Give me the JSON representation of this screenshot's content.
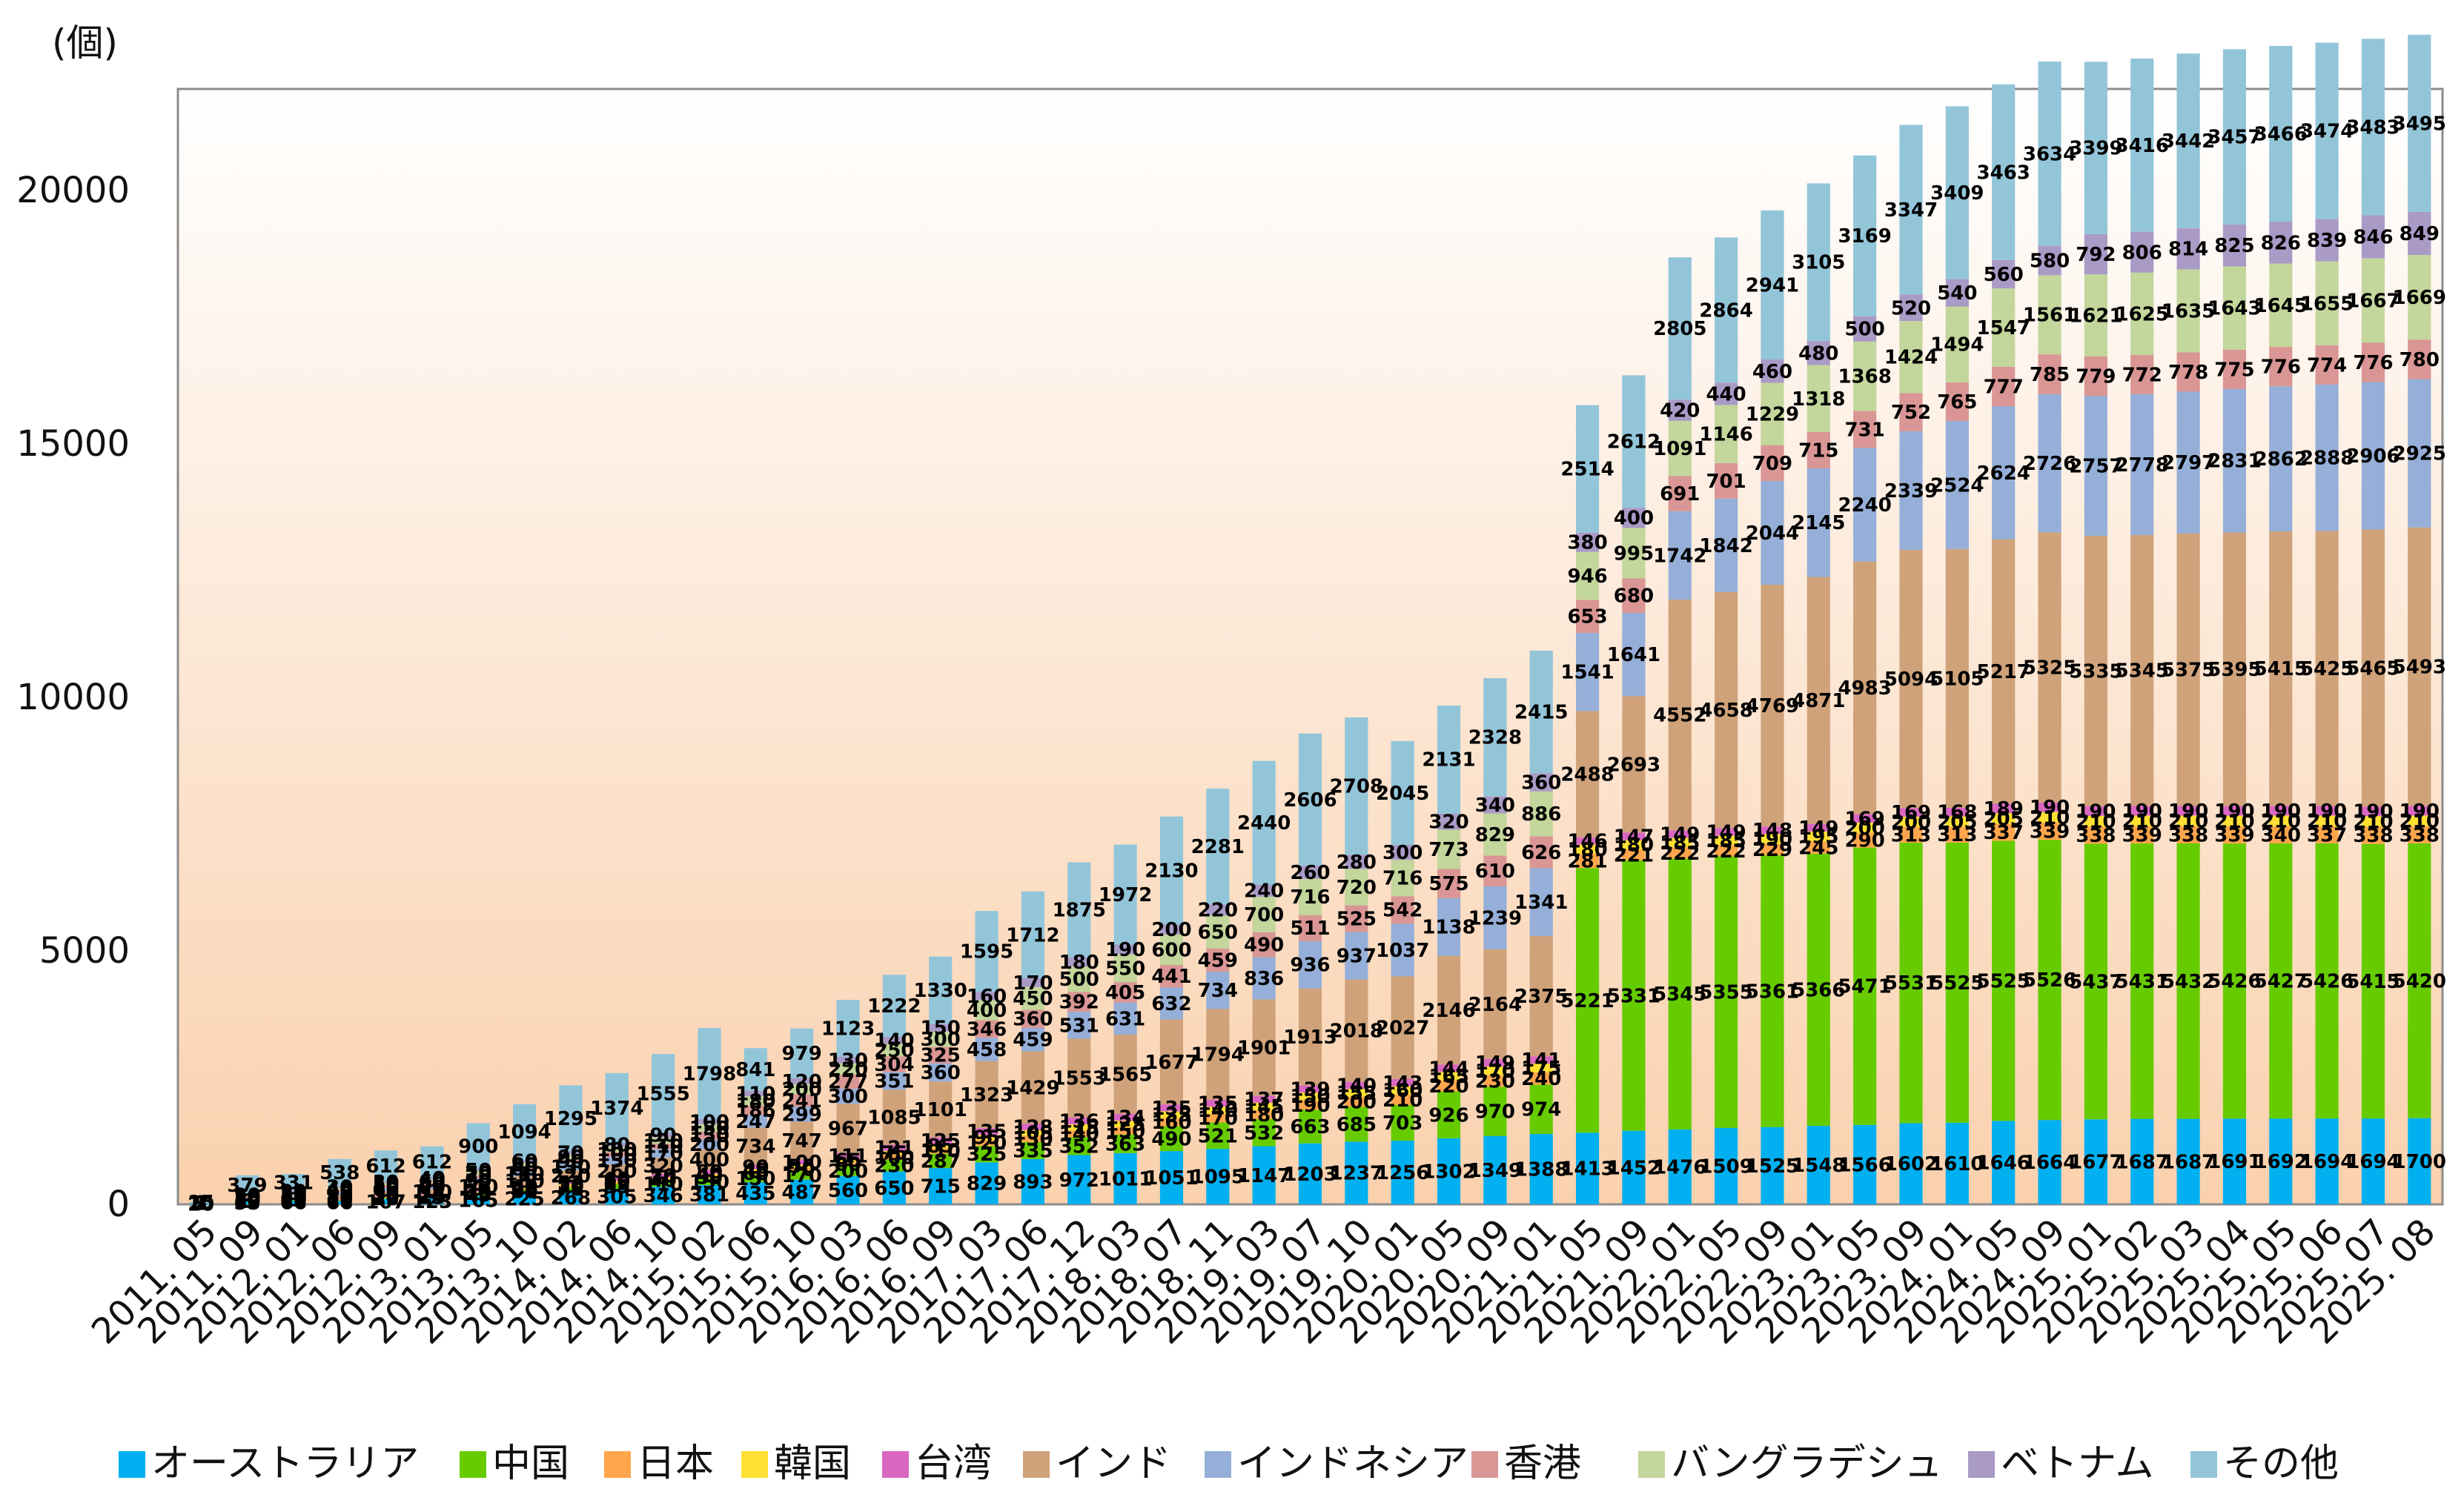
{
  "chart_data": {
    "type": "bar",
    "stacked": true,
    "unit_label": "(個)",
    "title": "",
    "xlabel": "",
    "ylabel": "",
    "ylim": [
      0,
      22000
    ],
    "yticks": [
      0,
      5000,
      10000,
      15000,
      20000
    ],
    "grid": false,
    "legend_position": "bottom",
    "categories": [
      "2011. 05",
      "2011. 09",
      "2012. 01",
      "2012. 06",
      "2012. 09",
      "2013. 01",
      "2013. 05",
      "2013. 10",
      "2014. 02",
      "2014. 06",
      "2014. 10",
      "2015. 02",
      "2015. 06",
      "2015. 10",
      "2016. 03",
      "2016. 06",
      "2016. 09",
      "2017. 03",
      "2017. 06",
      "2017. 12",
      "2018. 03",
      "2018. 07",
      "2018. 11",
      "2019. 03",
      "2019. 07",
      "2019. 10",
      "2020. 01",
      "2020. 05",
      "2020. 09",
      "2021. 01",
      "2021. 05",
      "2021. 09",
      "2022. 01",
      "2022. 05",
      "2022. 09",
      "2023. 01",
      "2023. 05",
      "2023. 09",
      "2024. 01",
      "2024. 05",
      "2024. 09",
      "2025. 01",
      "2025. 02",
      "2025. 03",
      "2025. 04",
      "2025. 05",
      "2025. 06",
      "2025. 07",
      "2025. 08"
    ],
    "series": [
      {
        "name": "オーストラリア",
        "color": "#00B0F0",
        "values": [
          20,
          55,
          66,
          66,
          107,
          123,
          165,
          225,
          268,
          305,
          346,
          381,
          435,
          487,
          560,
          650,
          715,
          829,
          893,
          972,
          1011,
          1051,
          1095,
          1147,
          1203,
          1237,
          1256,
          1302,
          1349,
          1388,
          1413,
          1452,
          1476,
          1509,
          1525,
          1548,
          1566,
          1602,
          1610,
          1646,
          1664,
          1677,
          1687,
          1687,
          1691,
          1692,
          1694,
          1694,
          1700
        ]
      },
      {
        "name": "中国",
        "color": "#66CC00",
        "values": [
          3,
          10,
          15,
          15,
          20,
          25,
          45,
          60,
          75,
          95,
          110,
          130,
          150,
          170,
          200,
          230,
          287,
          325,
          335,
          352,
          363,
          490,
          521,
          532,
          663,
          685,
          703,
          926,
          970,
          974,
          5221,
          5331,
          5345,
          5355,
          5361,
          5366,
          5471,
          5531,
          5525,
          5525,
          5526,
          5437,
          5431,
          5432,
          5426,
          5427,
          5426,
          5415,
          5420
        ]
      },
      {
        "name": "日本",
        "color": "#FFA64D",
        "values": [
          2,
          8,
          10,
          10,
          12,
          14,
          20,
          25,
          30,
          35,
          40,
          50,
          60,
          70,
          80,
          100,
          110,
          120,
          130,
          140,
          150,
          160,
          170,
          180,
          190,
          200,
          210,
          220,
          230,
          240,
          281,
          221,
          222,
          222,
          229,
          245,
          290,
          313,
          313,
          337,
          339,
          338,
          339,
          338,
          339,
          340,
          337,
          338,
          338
        ]
      },
      {
        "name": "韓国",
        "color": "#FFE033",
        "values": [
          2,
          6,
          8,
          10,
          12,
          14,
          18,
          22,
          26,
          30,
          34,
          40,
          48,
          56,
          65,
          75,
          85,
          95,
          105,
          115,
          125,
          135,
          140,
          145,
          150,
          155,
          160,
          165,
          170,
          175,
          180,
          180,
          185,
          185,
          190,
          195,
          200,
          200,
          205,
          205,
          210,
          210,
          210,
          210,
          210,
          210,
          210,
          210,
          210
        ]
      },
      {
        "name": "台湾",
        "color": "#D967C2",
        "values": [
          1,
          10,
          15,
          16,
          20,
          26,
          33,
          40,
          52,
          60,
          70,
          80,
          90,
          100,
          111,
          121,
          125,
          135,
          128,
          136,
          134,
          135,
          135,
          137,
          139,
          140,
          143,
          144,
          149,
          141,
          146,
          147,
          149,
          149,
          148,
          149,
          169,
          169,
          168,
          189,
          190,
          190,
          190,
          190,
          190,
          190,
          190,
          190,
          190
        ]
      },
      {
        "name": "インド",
        "color": "#CFA27A",
        "values": [
          2,
          30,
          50,
          80,
          90,
          100,
          140,
          180,
          220,
          260,
          320,
          400,
          734,
          747,
          967,
          1085,
          1101,
          1323,
          1429,
          1553,
          1565,
          1677,
          1794,
          1901,
          1913,
          2018,
          2027,
          2146,
          2164,
          2375,
          2488,
          2693,
          4552,
          4658,
          4769,
          4871,
          4983,
          5094,
          5105,
          5217,
          5325,
          5335,
          5345,
          5375,
          5395,
          5415,
          5425,
          5465,
          5493
        ]
      },
      {
        "name": "インドネシア",
        "color": "#95AFD8",
        "values": [
          1,
          20,
          30,
          50,
          60,
          70,
          90,
          110,
          130,
          150,
          170,
          200,
          247,
          299,
          300,
          351,
          360,
          458,
          459,
          531,
          631,
          632,
          734,
          836,
          936,
          937,
          1037,
          1138,
          1239,
          1341,
          1541,
          1641,
          1742,
          1842,
          2044,
          2145,
          2240,
          2339,
          2524,
          2624,
          2726,
          2757,
          2778,
          2797,
          2831,
          2862,
          2888,
          2906,
          2925
        ]
      },
      {
        "name": "香港",
        "color": "#D99694",
        "values": [
          1,
          15,
          25,
          40,
          50,
          60,
          70,
          80,
          90,
          100,
          110,
          150,
          186,
          241,
          277,
          304,
          325,
          346,
          360,
          392,
          405,
          441,
          459,
          490,
          511,
          525,
          542,
          575,
          610,
          626,
          653,
          680,
          691,
          701,
          709,
          715,
          731,
          752,
          765,
          777,
          785,
          779,
          772,
          778,
          775,
          776,
          774,
          776,
          780
        ]
      },
      {
        "name": "バングラデシュ",
        "color": "#C3D69B",
        "values": [
          1,
          20,
          30,
          40,
          50,
          60,
          70,
          80,
          90,
          100,
          120,
          150,
          180,
          200,
          220,
          250,
          300,
          400,
          450,
          500,
          550,
          600,
          650,
          700,
          716,
          720,
          716,
          773,
          829,
          886,
          946,
          995,
          1091,
          1146,
          1229,
          1318,
          1368,
          1424,
          1494,
          1547,
          1561,
          1621,
          1625,
          1635,
          1643,
          1645,
          1655,
          1667,
          1669
        ]
      },
      {
        "name": "ベトナム",
        "color": "#A99AC6",
        "values": [
          1,
          20,
          20,
          30,
          30,
          40,
          50,
          60,
          70,
          80,
          90,
          100,
          110,
          120,
          130,
          140,
          150,
          160,
          170,
          180,
          190,
          200,
          220,
          240,
          260,
          280,
          300,
          320,
          340,
          360,
          380,
          400,
          420,
          440,
          460,
          480,
          500,
          520,
          540,
          560,
          580,
          792,
          806,
          814,
          825,
          826,
          839,
          846,
          849
        ]
      },
      {
        "name": "その他",
        "color": "#93C5D9",
        "values": [
          15,
          379,
          331,
          538,
          612,
          612,
          900,
          1094,
          1295,
          1374,
          1555,
          1798,
          841,
          979,
          1123,
          1222,
          1330,
          1595,
          1712,
          1875,
          1972,
          2130,
          2281,
          2440,
          2606,
          2708,
          2045,
          2131,
          2328,
          2415,
          2514,
          2612,
          2805,
          2864,
          2941,
          3105,
          3169,
          3347,
          3409,
          3463,
          3634,
          3399,
          3416,
          3442,
          3457,
          3466,
          3474,
          3483,
          3495
        ]
      }
    ]
  }
}
